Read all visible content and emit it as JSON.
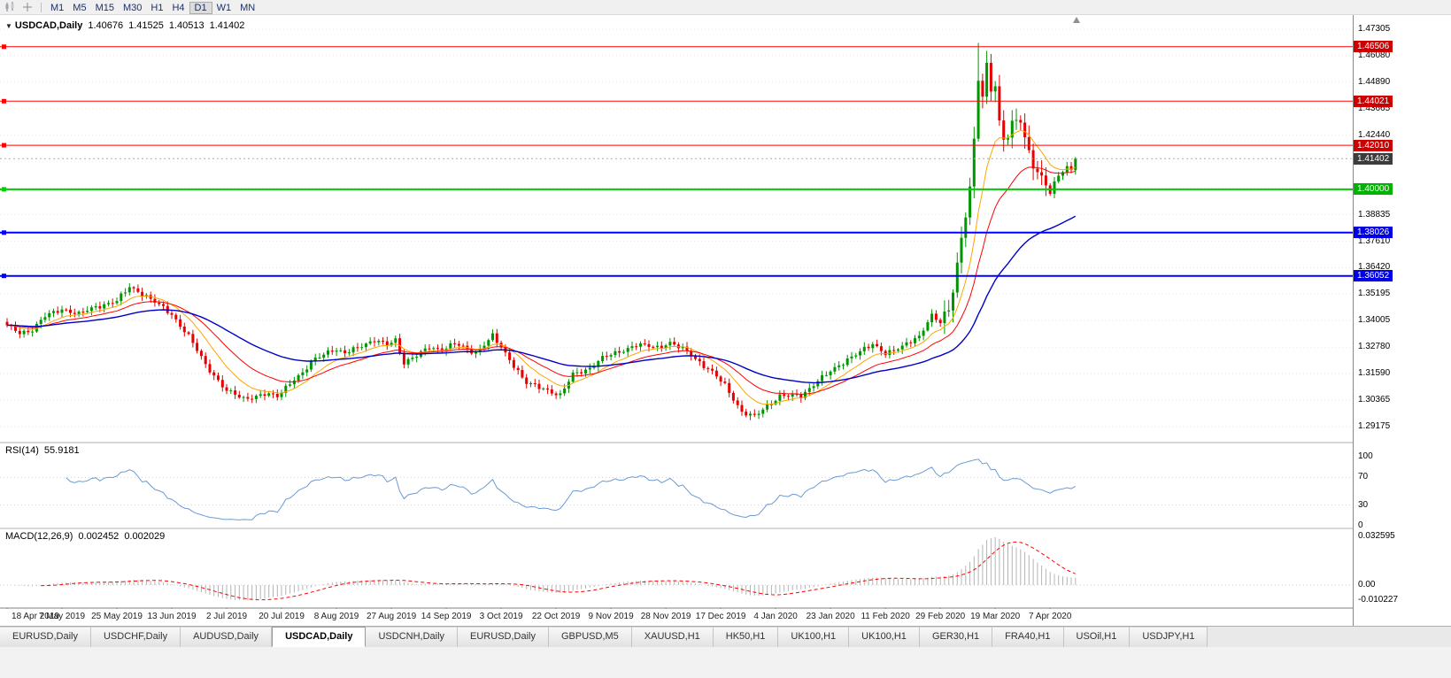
{
  "icons": {
    "symbol_dropdown": "▼",
    "toolbar_icons": [
      "candlestick-chart-icon",
      "crosshair-icon"
    ]
  },
  "toolbar": {
    "timeframes": [
      "M1",
      "M5",
      "M15",
      "M30",
      "H1",
      "H4",
      "D1",
      "W1",
      "MN"
    ],
    "active_timeframe": "D1"
  },
  "chart": {
    "title": "USDCAD,Daily",
    "ohlc": {
      "open": "1.40676",
      "high": "1.41525",
      "low": "1.40513",
      "close": "1.41402"
    },
    "current_price": {
      "label": "1.41402",
      "value": 1.41402
    },
    "price_axis_labels": [
      "1.47305",
      "1.46080",
      "1.44890",
      "1.43665",
      "1.42440",
      "1.41250",
      "1.40025",
      "1.38835",
      "1.37610",
      "1.36420",
      "1.35195",
      "1.34005",
      "1.32780",
      "1.31590",
      "1.30365",
      "1.29175"
    ],
    "levels": [
      {
        "label": "1.46506",
        "value": 1.46506,
        "color": "#FF0000",
        "tag_bg": "#CC0000",
        "thickness": 1
      },
      {
        "label": "1.44021",
        "value": 1.44021,
        "color": "#FF0000",
        "tag_bg": "#CC0000",
        "thickness": 1
      },
      {
        "label": "1.42010",
        "value": 1.4201,
        "color": "#FF0000",
        "tag_bg": "#CC0000",
        "thickness": 1
      },
      {
        "label": "1.40000",
        "value": 1.4,
        "color": "#00CC00",
        "tag_bg": "#00B300",
        "thickness": 2
      },
      {
        "label": "1.38026",
        "value": 1.38026,
        "color": "#0000FF",
        "tag_bg": "#0000E6",
        "thickness": 2
      },
      {
        "label": "1.36052",
        "value": 1.36052,
        "color": "#0000FF",
        "tag_bg": "#0000E6",
        "thickness": 2
      }
    ],
    "date_axis_labels": [
      "18 Apr 2019",
      "7 May 2019",
      "25 May 2019",
      "13 Jun 2019",
      "2 Jul 2019",
      "20 Jul 2019",
      "8 Aug 2019",
      "27 Aug 2019",
      "14 Sep 2019",
      "3 Oct 2019",
      "22 Oct 2019",
      "9 Nov 2019",
      "28 Nov 2019",
      "17 Dec 2019",
      "4 Jan 2020",
      "23 Jan 2020",
      "11 Feb 2020",
      "29 Feb 2020",
      "19 Mar 2020",
      "7 Apr 2020"
    ]
  },
  "rsi": {
    "label": "RSI(14)",
    "value": "55.9181",
    "axis_labels": [
      "100",
      "70",
      "30",
      "0"
    ],
    "axis_values": [
      100,
      70,
      30,
      0
    ]
  },
  "macd": {
    "label": "MACD(12,26,9)",
    "main_value": "0.002452",
    "signal_value": "0.002029",
    "axis_labels": [
      "0.032595",
      "0.00",
      "-0.010227"
    ],
    "axis_values": [
      0.032595,
      0,
      -0.010227
    ]
  },
  "tabs": [
    {
      "label": "EURUSD,Daily",
      "active": false
    },
    {
      "label": "USDCHF,Daily",
      "active": false
    },
    {
      "label": "AUDUSD,Daily",
      "active": false
    },
    {
      "label": "USDCAD,Daily",
      "active": true
    },
    {
      "label": "USDCNH,Daily",
      "active": false
    },
    {
      "label": "EURUSD,Daily",
      "active": false
    },
    {
      "label": "GBPUSD,M5",
      "active": false
    },
    {
      "label": "XAUUSD,H1",
      "active": false
    },
    {
      "label": "HK50,H1",
      "active": false
    },
    {
      "label": "UK100,H1",
      "active": false
    },
    {
      "label": "UK100,H1",
      "active": false
    },
    {
      "label": "GER30,H1",
      "active": false
    },
    {
      "label": "FRA40,H1",
      "active": false
    },
    {
      "label": "USOil,H1",
      "active": false
    },
    {
      "label": "USDJPY,H1",
      "active": false
    }
  ],
  "colors": {
    "up_candle": "#009600",
    "down_candle": "#E60000",
    "ma_fast": "#FFA500",
    "ma_mid": "#FF0000",
    "ma_slow": "#0000C8",
    "rsi_line": "#6B9BD2",
    "macd_histogram": "#B4B4B4",
    "macd_signal": "#FF0000",
    "grid": "#E8E8E8",
    "current_price_tag_bg": "#3C3C3C"
  },
  "chart_data": {
    "type": "candlestick",
    "symbol": "USDCAD",
    "timeframe": "Daily",
    "title": "USDCAD,Daily 1.40676 1.41525 1.40513 1.41402",
    "y_axis_range": [
      1.29175,
      1.47305
    ],
    "x_tick_labels": [
      "18 Apr 2019",
      "7 May 2019",
      "25 May 2019",
      "13 Jun 2019",
      "2 Jul 2019",
      "20 Jul 2019",
      "8 Aug 2019",
      "27 Aug 2019",
      "14 Sep 2019",
      "3 Oct 2019",
      "22 Oct 2019",
      "9 Nov 2019",
      "28 Nov 2019",
      "17 Dec 2019",
      "4 Jan 2020",
      "23 Jan 2020",
      "11 Feb 2020",
      "29 Feb 2020",
      "19 Mar 2020",
      "7 Apr 2020"
    ],
    "candle_count": 254,
    "last_close": 1.41402,
    "price_anchors": [
      [
        0,
        1.338
      ],
      [
        3,
        1.3345
      ],
      [
        6,
        1.336
      ],
      [
        9,
        1.342
      ],
      [
        13,
        1.3455
      ],
      [
        17,
        1.343
      ],
      [
        21,
        1.3465
      ],
      [
        26,
        1.349
      ],
      [
        29,
        1.3555
      ],
      [
        32,
        1.3525
      ],
      [
        35,
        1.3485
      ],
      [
        39,
        1.343
      ],
      [
        43,
        1.333
      ],
      [
        47,
        1.32
      ],
      [
        52,
        1.308
      ],
      [
        56,
        1.3045
      ],
      [
        61,
        1.3065
      ],
      [
        64,
        1.3055
      ],
      [
        67,
        1.312
      ],
      [
        70,
        1.316
      ],
      [
        73,
        1.323
      ],
      [
        77,
        1.327
      ],
      [
        80,
        1.325
      ],
      [
        84,
        1.329
      ],
      [
        87,
        1.331
      ],
      [
        90,
        1.329
      ],
      [
        92,
        1.3315
      ],
      [
        94,
        1.321
      ],
      [
        97,
        1.324
      ],
      [
        100,
        1.328
      ],
      [
        103,
        1.327
      ],
      [
        106,
        1.3295
      ],
      [
        111,
        1.3255
      ],
      [
        115,
        1.333
      ],
      [
        119,
        1.3225
      ],
      [
        123,
        1.3115
      ],
      [
        128,
        1.3085
      ],
      [
        131,
        1.306
      ],
      [
        134,
        1.3155
      ],
      [
        138,
        1.3185
      ],
      [
        141,
        1.323
      ],
      [
        145,
        1.326
      ],
      [
        149,
        1.329
      ],
      [
        154,
        1.328
      ],
      [
        157,
        1.33
      ],
      [
        161,
        1.326
      ],
      [
        167,
        1.3165
      ],
      [
        170,
        1.3105
      ],
      [
        174,
        1.2985
      ],
      [
        177,
        1.2962
      ],
      [
        179,
        1.2995
      ],
      [
        183,
        1.306
      ],
      [
        188,
        1.3055
      ],
      [
        192,
        1.313
      ],
      [
        196,
        1.318
      ],
      [
        200,
        1.324
      ],
      [
        205,
        1.329
      ],
      [
        208,
        1.3255
      ],
      [
        212,
        1.328
      ],
      [
        216,
        1.333
      ],
      [
        218,
        1.34
      ],
      [
        219,
        1.3425
      ],
      [
        221,
        1.339
      ],
      [
        223,
        1.344
      ],
      [
        225,
        1.366
      ],
      [
        227,
        1.39
      ],
      [
        228,
        1.401
      ],
      [
        229,
        1.421
      ],
      [
        230,
        1.45
      ],
      [
        231,
        1.442
      ],
      [
        232,
        1.455
      ],
      [
        233,
        1.446
      ],
      [
        234,
        1.449
      ],
      [
        235,
        1.431
      ],
      [
        236,
        1.423
      ],
      [
        238,
        1.429
      ],
      [
        240,
        1.431
      ],
      [
        242,
        1.416
      ],
      [
        244,
        1.409
      ],
      [
        246,
        1.402
      ],
      [
        247,
        1.3985
      ],
      [
        249,
        1.406
      ],
      [
        251,
        1.4105
      ],
      [
        252,
        1.4085
      ],
      [
        253,
        1.414
      ]
    ],
    "high_overrides": [
      [
        230,
        1.4668
      ]
    ],
    "volatile_range": [
      222,
      246
    ],
    "horizontal_levels": [
      1.46506,
      1.44021,
      1.4201,
      1.4,
      1.38026,
      1.36052
    ],
    "indicators": {
      "moving_averages": [
        10,
        21,
        50
      ],
      "rsi_period": 14,
      "rsi_current": 55.9181,
      "macd_params": [
        12,
        26,
        9
      ],
      "macd_current": [
        0.002452,
        0.002029
      ],
      "macd_scale_max": 0.032595,
      "macd_scale_min": -0.010227
    }
  }
}
